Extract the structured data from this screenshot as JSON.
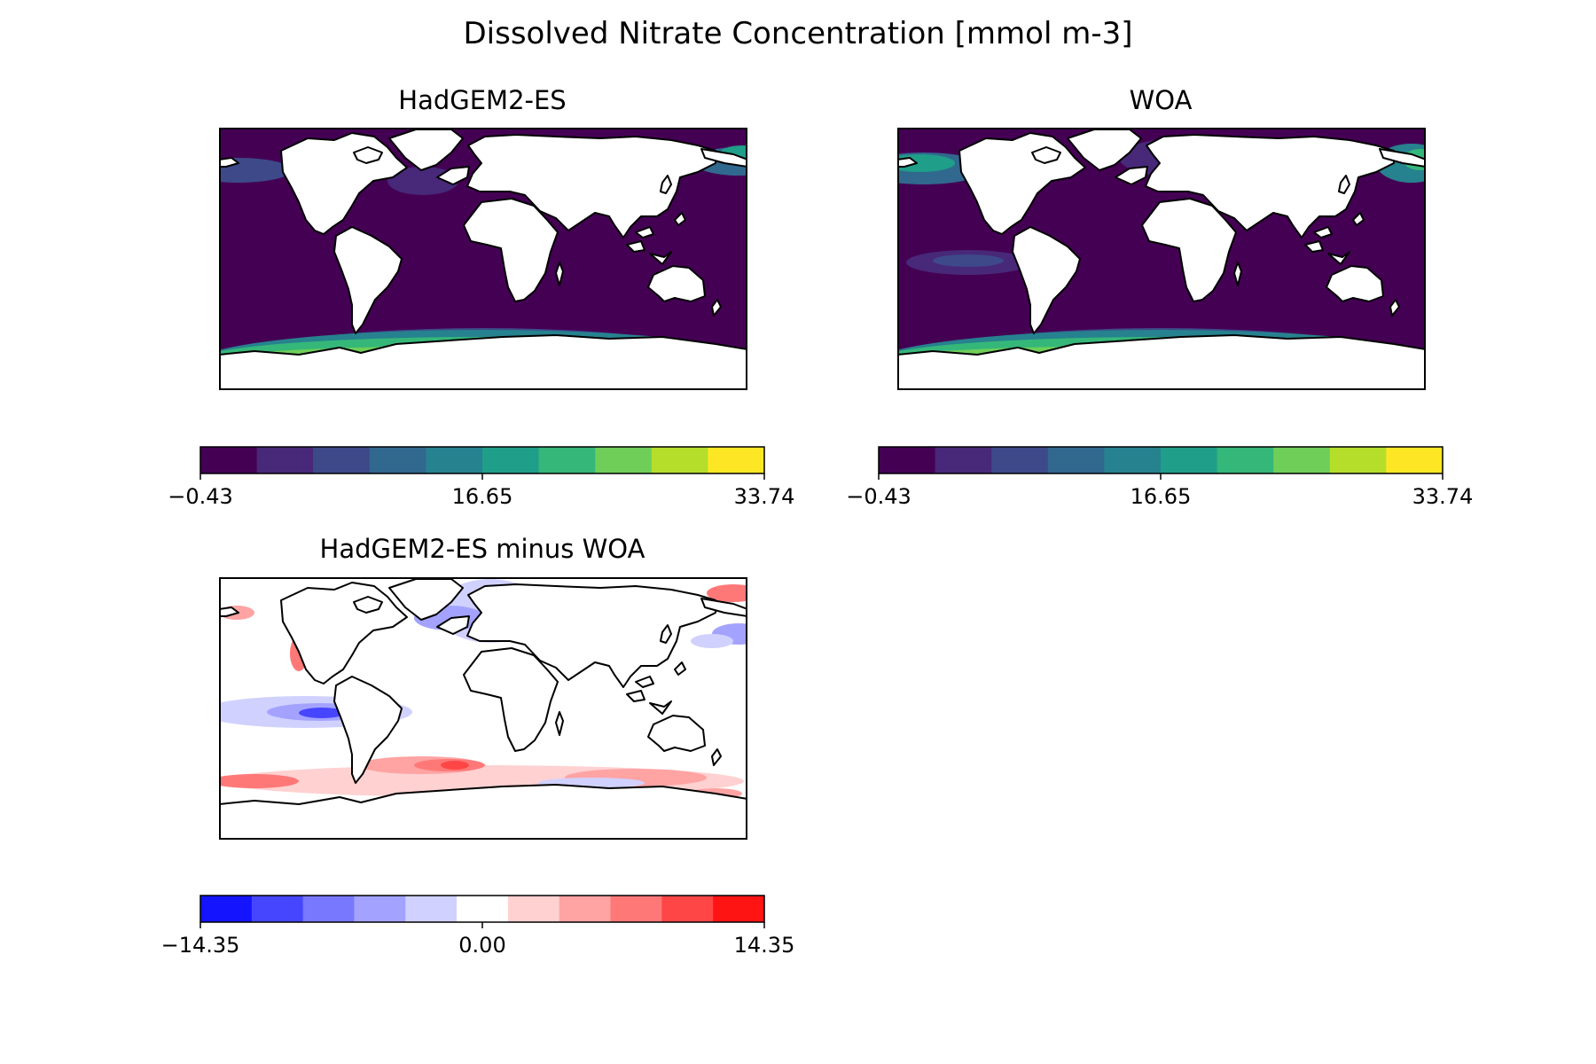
{
  "figure": {
    "title": "Dissolved Nitrate Concentration [mmol m-3]"
  },
  "panels": [
    {
      "id": "model",
      "title": "HadGEM2-ES",
      "colormap": [
        "#440154",
        "#482878",
        "#3e4989",
        "#31688e",
        "#26828e",
        "#1f9e89",
        "#35b779",
        "#6ece58",
        "#b5de2b",
        "#fde725"
      ],
      "colorbar": {
        "ticks": [
          "−0.43",
          "16.65",
          "33.74"
        ],
        "range": [
          -0.43,
          33.74
        ]
      }
    },
    {
      "id": "obs",
      "title": "WOA",
      "colormap": [
        "#440154",
        "#482878",
        "#3e4989",
        "#31688e",
        "#26828e",
        "#1f9e89",
        "#35b779",
        "#6ece58",
        "#b5de2b",
        "#fde725"
      ],
      "colorbar": {
        "ticks": [
          "−0.43",
          "16.65",
          "33.74"
        ],
        "range": [
          -0.43,
          33.74
        ]
      }
    },
    {
      "id": "diff",
      "title": "HadGEM2-ES minus WOA",
      "colormap": [
        "#1414ff",
        "#4646ff",
        "#7878ff",
        "#a3a3ff",
        "#d1d1ff",
        "#ffffff",
        "#ffd1d1",
        "#ffa3a3",
        "#ff7878",
        "#ff4646",
        "#ff1414"
      ],
      "colorbar": {
        "ticks": [
          "−14.35",
          "0.00",
          "14.35"
        ],
        "range": [
          -14.35,
          14.35
        ]
      }
    }
  ],
  "chart_data": {
    "type": "heatmap",
    "variable": "Dissolved Nitrate Concentration",
    "units": "mmol m-3",
    "maps": [
      {
        "name": "HadGEM2-ES",
        "range": [
          -0.43,
          33.74
        ],
        "levels": 10
      },
      {
        "name": "WOA",
        "range": [
          -0.43,
          33.74
        ],
        "levels": 10
      },
      {
        "name": "HadGEM2-ES minus WOA",
        "range": [
          -14.35,
          14.35
        ],
        "levels": 11
      }
    ]
  }
}
